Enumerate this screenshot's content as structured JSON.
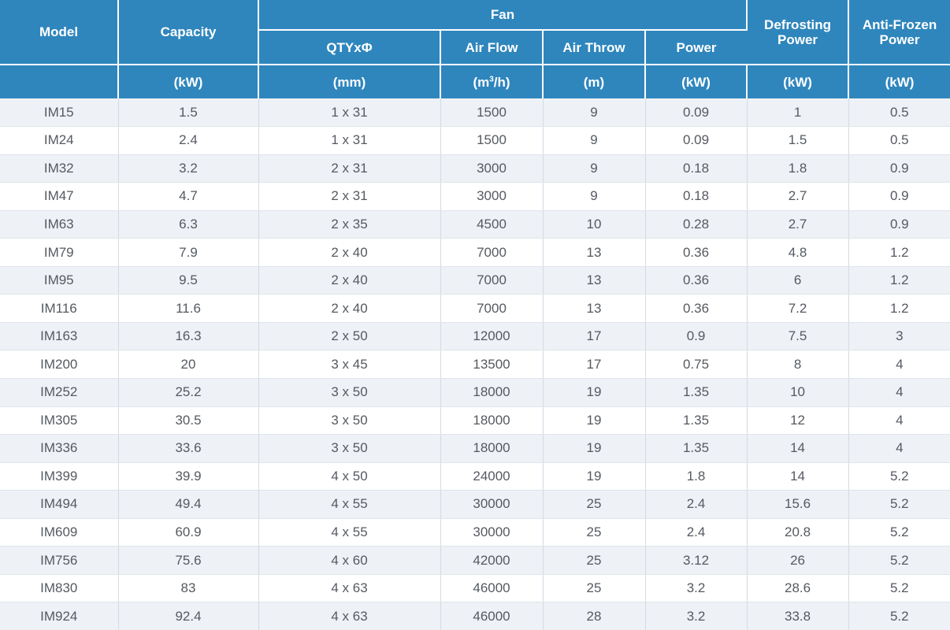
{
  "headers": {
    "model": "Model",
    "capacity": "Capacity",
    "fan": "Fan",
    "qty": "QTYxΦ",
    "air_flow": "Air Flow",
    "air_throw": "Air Throw",
    "power": "Power",
    "defrosting_power": "Defrosting Power",
    "anti_frozen_power": "Anti-Frozen Power"
  },
  "units": {
    "capacity": "(kW)",
    "qty": "(mm)",
    "air_flow_prefix": "(m",
    "air_flow_sup": "3",
    "air_flow_suffix": "/h)",
    "air_throw": "(m)",
    "power": "(kW)",
    "defrosting_power": "(kW)",
    "anti_frozen_power": "(kW)"
  },
  "rows": [
    [
      "IM15",
      "1.5",
      "1 x 31",
      "1500",
      "9",
      "0.09",
      "1",
      "0.5"
    ],
    [
      "IM24",
      "2.4",
      "1 x 31",
      "1500",
      "9",
      "0.09",
      "1.5",
      "0.5"
    ],
    [
      "IM32",
      "3.2",
      "2 x 31",
      "3000",
      "9",
      "0.18",
      "1.8",
      "0.9"
    ],
    [
      "IM47",
      "4.7",
      "2 x 31",
      "3000",
      "9",
      "0.18",
      "2.7",
      "0.9"
    ],
    [
      "IM63",
      "6.3",
      "2 x 35",
      "4500",
      "10",
      "0.28",
      "2.7",
      "0.9"
    ],
    [
      "IM79",
      "7.9",
      "2 x 40",
      "7000",
      "13",
      "0.36",
      "4.8",
      "1.2"
    ],
    [
      "IM95",
      "9.5",
      "2 x 40",
      "7000",
      "13",
      "0.36",
      "6",
      "1.2"
    ],
    [
      "IM116",
      "11.6",
      "2 x 40",
      "7000",
      "13",
      "0.36",
      "7.2",
      "1.2"
    ],
    [
      "IM163",
      "16.3",
      "2 x 50",
      "12000",
      "17",
      "0.9",
      "7.5",
      "3"
    ],
    [
      "IM200",
      "20",
      "3 x 45",
      "13500",
      "17",
      "0.75",
      "8",
      "4"
    ],
    [
      "IM252",
      "25.2",
      "3 x 50",
      "18000",
      "19",
      "1.35",
      "10",
      "4"
    ],
    [
      "IM305",
      "30.5",
      "3 x 50",
      "18000",
      "19",
      "1.35",
      "12",
      "4"
    ],
    [
      "IM336",
      "33.6",
      "3 x 50",
      "18000",
      "19",
      "1.35",
      "14",
      "4"
    ],
    [
      "IM399",
      "39.9",
      "4 x 50",
      "24000",
      "19",
      "1.8",
      "14",
      "5.2"
    ],
    [
      "IM494",
      "49.4",
      "4 x 55",
      "30000",
      "25",
      "2.4",
      "15.6",
      "5.2"
    ],
    [
      "IM609",
      "60.9",
      "4 x 55",
      "30000",
      "25",
      "2.4",
      "20.8",
      "5.2"
    ],
    [
      "IM756",
      "75.6",
      "4 x 60",
      "42000",
      "25",
      "3.12",
      "26",
      "5.2"
    ],
    [
      "IM830",
      "83",
      "4 x 63",
      "46000",
      "25",
      "3.2",
      "28.6",
      "5.2"
    ],
    [
      "IM924",
      "92.4",
      "4 x 63",
      "46000",
      "28",
      "3.2",
      "33.8",
      "5.2"
    ]
  ]
}
